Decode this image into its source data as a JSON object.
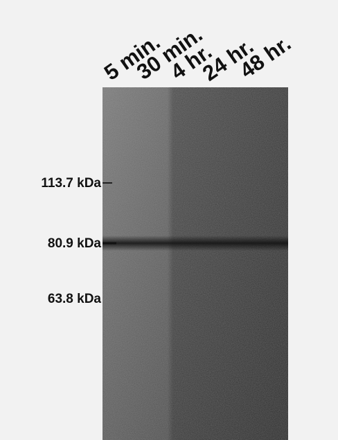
{
  "lanes": [
    "5 min.",
    "30 min.",
    "4 hr.",
    "24 hr.",
    "48 hr."
  ],
  "markers": [
    "113.7 kDa",
    "80.9 kDa",
    "63.8 kDa"
  ]
}
